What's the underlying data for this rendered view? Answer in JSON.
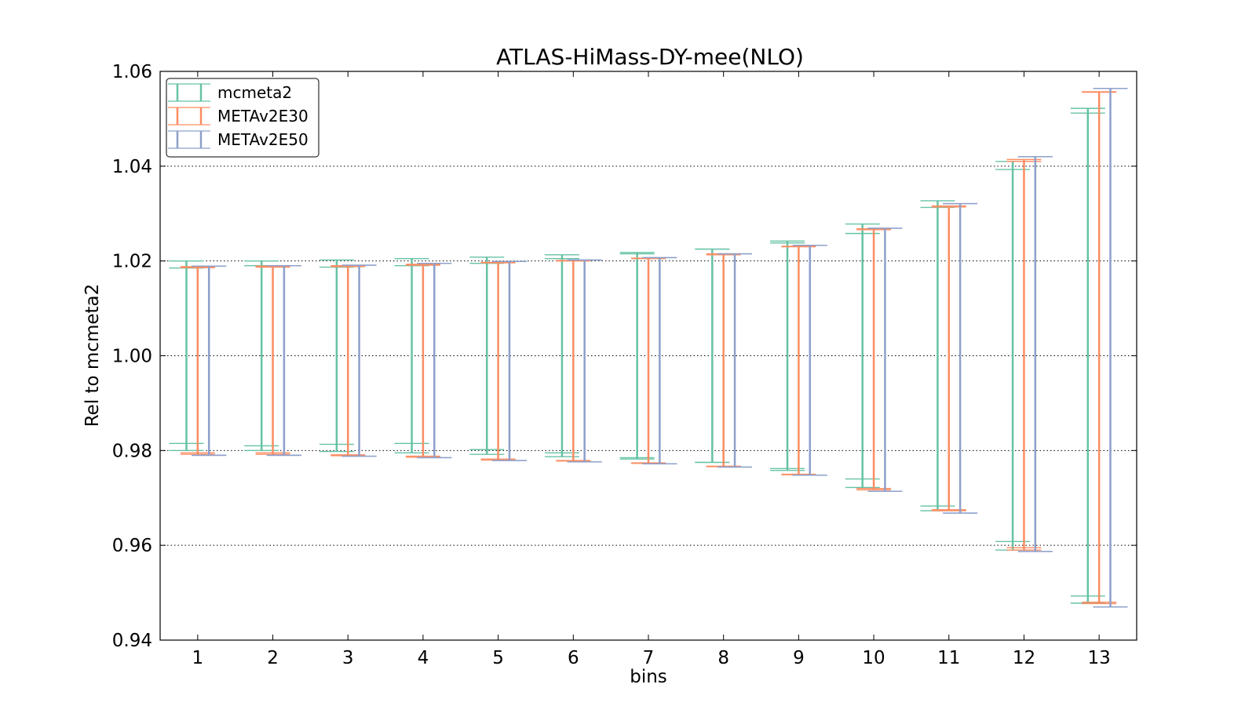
{
  "chart_data": {
    "type": "errorbar",
    "title": "ATLAS-HiMass-DY-mee(NLO)",
    "xlabel": "bins",
    "ylabel": "Rel to mcmeta2",
    "xlim": [
      0.5,
      13.5
    ],
    "ylim": [
      0.94,
      1.06
    ],
    "x_ticks": [
      "1",
      "2",
      "3",
      "4",
      "5",
      "6",
      "7",
      "8",
      "9",
      "10",
      "11",
      "12",
      "13"
    ],
    "y_ticks": [
      "0.94",
      "0.96",
      "0.98",
      "1.00",
      "1.02",
      "1.04",
      "1.06"
    ],
    "grid": "horizontal dotted",
    "legend_position": "top-left",
    "categories": [
      1,
      2,
      3,
      4,
      5,
      6,
      7,
      8,
      9,
      10,
      11,
      12,
      13
    ],
    "series": [
      {
        "name": "mcmeta2",
        "color": "#66c2a5",
        "lower": [
          0.98,
          0.98,
          0.9798,
          0.9795,
          0.9792,
          0.9787,
          0.9782,
          0.9775,
          0.9758,
          0.9722,
          0.9673,
          0.959,
          0.9478
        ],
        "upper": [
          1.02,
          1.02,
          1.0202,
          1.0205,
          1.0208,
          1.0213,
          1.0218,
          1.0225,
          1.0242,
          1.0278,
          1.0327,
          1.041,
          1.0522
        ],
        "inner_lower": [
          0.9815,
          0.981,
          0.9813,
          0.9815,
          0.9802,
          0.9795,
          0.9785,
          0.9775,
          0.9762,
          0.974,
          0.9683,
          0.9608,
          0.9493
        ],
        "inner_upper": [
          1.0185,
          1.019,
          1.0187,
          1.019,
          1.0195,
          1.0205,
          1.0215,
          1.0225,
          1.0238,
          1.0258,
          1.0313,
          1.0393,
          1.0512
        ]
      },
      {
        "name": "METAv2E30",
        "color": "#fc8d62",
        "lower": [
          0.9792,
          0.9792,
          0.9789,
          0.9786,
          0.978,
          0.9778,
          0.9773,
          0.9766,
          0.9749,
          0.9717,
          0.9673,
          0.959,
          0.9477
        ],
        "upper": [
          1.0188,
          1.0189,
          1.019,
          1.0193,
          1.0197,
          1.0201,
          1.0206,
          1.0215,
          1.0231,
          1.0268,
          1.0316,
          1.0414,
          1.0557
        ],
        "inner_lower": [
          0.9795,
          0.9795,
          0.9791,
          0.9788,
          0.9782,
          0.9779,
          0.9774,
          0.9767,
          0.975,
          0.972,
          0.9675,
          0.9595,
          0.948
        ],
        "inner_upper": [
          1.0186,
          1.0187,
          1.0188,
          1.0191,
          1.0196,
          1.02,
          1.0205,
          1.0213,
          1.023,
          1.0266,
          1.0314,
          1.041,
          1.0556
        ]
      },
      {
        "name": "METAv2E50",
        "color": "#8da0cb",
        "lower": [
          0.979,
          0.979,
          0.9788,
          0.9785,
          0.9779,
          0.9776,
          0.9772,
          0.9765,
          0.9748,
          0.9714,
          0.9668,
          0.9587,
          0.947
        ],
        "upper": [
          1.0189,
          1.019,
          1.0191,
          1.0195,
          1.0199,
          1.0202,
          1.0207,
          1.0215,
          1.0233,
          1.0269,
          1.0321,
          1.042,
          1.0564
        ],
        "inner_lower": [
          0.979,
          0.979,
          0.9788,
          0.9785,
          0.9779,
          0.9776,
          0.9772,
          0.9765,
          0.9748,
          0.9714,
          0.9668,
          0.9587,
          0.947
        ],
        "inner_upper": [
          1.0189,
          1.019,
          1.0191,
          1.0195,
          1.0199,
          1.0202,
          1.0207,
          1.0215,
          1.0233,
          1.0269,
          1.0321,
          1.042,
          1.0564
        ]
      }
    ]
  }
}
